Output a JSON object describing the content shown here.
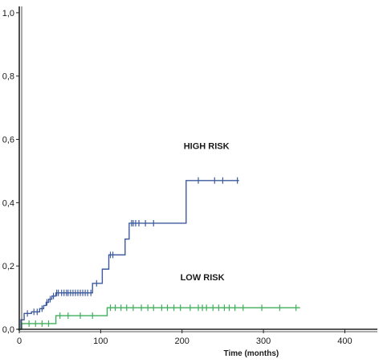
{
  "chart_data": {
    "type": "line",
    "subtype": "kaplan-meier-step",
    "title": "",
    "xlabel": "Time (months)",
    "ylabel": "",
    "xlim": [
      0,
      440
    ],
    "ylim": [
      0,
      1.02
    ],
    "x_ticks": [
      0,
      100,
      200,
      300,
      400
    ],
    "x_tick_labels": [
      "0",
      "100",
      "200",
      "300",
      "400"
    ],
    "y_ticks": [
      0,
      0.2,
      0.4,
      0.6,
      0.8,
      1.0
    ],
    "y_tick_labels": [
      "0,0",
      "0,2",
      "0,4",
      "0,6",
      "0,8",
      "1,0"
    ],
    "grid": false,
    "legend": "none",
    "series": [
      {
        "name": "HIGH RISK",
        "color": "#3d5a9e",
        "label_at": [
          230,
          0.57
        ],
        "steps": [
          [
            0,
            0.0
          ],
          [
            2,
            0.03
          ],
          [
            6,
            0.05
          ],
          [
            15,
            0.055
          ],
          [
            25,
            0.065
          ],
          [
            30,
            0.075
          ],
          [
            33,
            0.085
          ],
          [
            36,
            0.095
          ],
          [
            40,
            0.105
          ],
          [
            45,
            0.115
          ],
          [
            90,
            0.145
          ],
          [
            102,
            0.19
          ],
          [
            110,
            0.235
          ],
          [
            130,
            0.285
          ],
          [
            135,
            0.335
          ],
          [
            205,
            0.47
          ],
          [
            270,
            0.47
          ]
        ],
        "censor_x": [
          10,
          18,
          22,
          28,
          34,
          38,
          42,
          46,
          48,
          52,
          55,
          58,
          60,
          63,
          66,
          69,
          72,
          75,
          78,
          81,
          84,
          88,
          95,
          112,
          115,
          138,
          140,
          143,
          147,
          155,
          165,
          220,
          240,
          250,
          268
        ]
      },
      {
        "name": "LOW RISK",
        "color": "#3fae5a",
        "label_at": [
          225,
          0.155
        ],
        "steps": [
          [
            0,
            0.0
          ],
          [
            3,
            0.018
          ],
          [
            45,
            0.043
          ],
          [
            108,
            0.068
          ],
          [
            345,
            0.068
          ]
        ],
        "censor_x": [
          12,
          20,
          28,
          36,
          50,
          60,
          75,
          90,
          112,
          118,
          125,
          132,
          140,
          150,
          158,
          165,
          175,
          182,
          190,
          198,
          210,
          220,
          225,
          230,
          238,
          245,
          252,
          258,
          265,
          275,
          298,
          320,
          340
        ]
      }
    ]
  }
}
